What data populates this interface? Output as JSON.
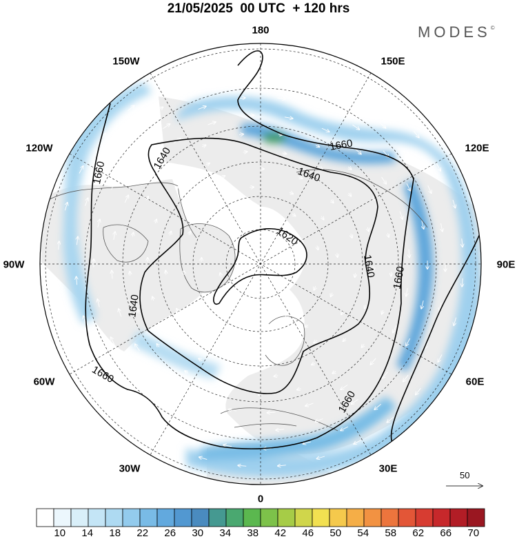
{
  "header": {
    "title": "21/05/2025  00 UTC  + 120 hrs"
  },
  "branding": {
    "logo_text": "MODES",
    "logo_mark": "©"
  },
  "map": {
    "projection": "polar-stereographic-north",
    "longitude_labels": {
      "lon_180": "180",
      "lon_150e": "150E",
      "lon_120e": "120E",
      "lon_90e": "90E",
      "lon_60e": "60E",
      "lon_30e": "30E",
      "lon_0": "0",
      "lon_30w": "30W",
      "lon_60w": "60W",
      "lon_90w": "90W",
      "lon_120w": "120W",
      "lon_150w": "150W"
    },
    "contour_labels": {
      "c1": "1640",
      "c2": "1640",
      "c3": "1660",
      "c4": "1660",
      "c5": "1620",
      "c6": "1640",
      "c7": "1660",
      "c8": "1640",
      "c9": "1660",
      "c10": "1660"
    },
    "contour_levels": [
      1620,
      1640,
      1660
    ],
    "shading_colors": [
      "#ffffff",
      "#e6f4fc",
      "#d2ebf9",
      "#bce1f6",
      "#a3d4f1",
      "#88c4ea",
      "#6eb2e1",
      "#5a9fd6",
      "#4d92c7",
      "#43968f",
      "#3f9a68"
    ],
    "scale_vector": {
      "label": "50"
    }
  },
  "colorbar": {
    "ticks": [
      "10",
      "14",
      "18",
      "22",
      "26",
      "30",
      "34",
      "38",
      "42",
      "46",
      "50",
      "54",
      "58",
      "62",
      "66",
      "70"
    ],
    "colors": [
      "#ffffff",
      "#ecf7fd",
      "#d9eff9",
      "#c4e5f6",
      "#aedaf2",
      "#93cbed",
      "#79bbe6",
      "#62a9de",
      "#5298d1",
      "#4a8bbf",
      "#459991",
      "#4aa870",
      "#5bb84f",
      "#7dc24a",
      "#a6cc47",
      "#d0d64b",
      "#f2e051",
      "#f5c94c",
      "#f5ae47",
      "#f29242",
      "#ec753d",
      "#e35637",
      "#d73c31",
      "#c7282b",
      "#b21d26",
      "#9a1721"
    ]
  }
}
